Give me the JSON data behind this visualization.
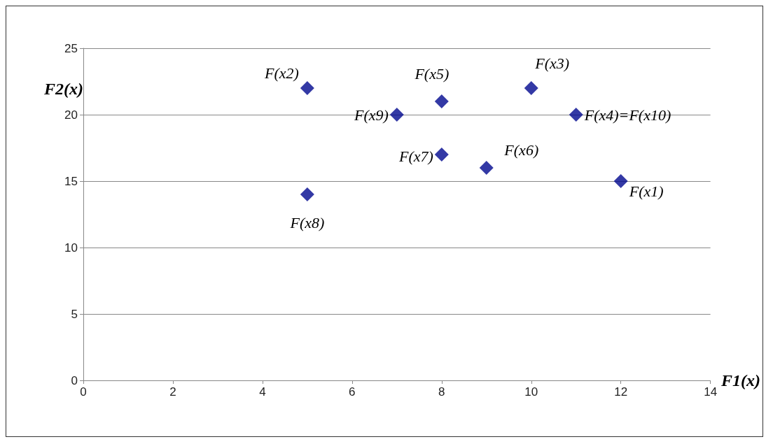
{
  "chart_data": {
    "type": "scatter",
    "xlabel": "F1(x)",
    "ylabel": "F2(x)",
    "x": [
      5,
      8,
      10,
      7,
      11,
      8,
      9,
      12,
      5
    ],
    "values": [
      22,
      21,
      22,
      20,
      20,
      17,
      16,
      15,
      14
    ],
    "color": "#00078f",
    "marker": "diamond",
    "grid": "y",
    "xlim": [
      0,
      14
    ],
    "xticks": [
      0,
      2,
      4,
      6,
      8,
      10,
      12,
      14
    ],
    "ylim": [
      0,
      25
    ],
    "yticks": [
      0,
      5,
      10,
      15,
      20,
      25
    ],
    "annotations": [
      {
        "text": "F(x2)",
        "x": 5,
        "y": 22
      },
      {
        "text": "F(x5)",
        "x": 8,
        "y": 21
      },
      {
        "text": "F(x3)",
        "x": 10,
        "y": 22
      },
      {
        "text": "F(x9)",
        "x": 7,
        "y": 20
      },
      {
        "text": "F(x4)=F(x10)",
        "x": 11,
        "y": 20
      },
      {
        "text": "F(x7)",
        "x": 8,
        "y": 17
      },
      {
        "text": "F(x6)",
        "x": 9,
        "y": 16
      },
      {
        "text": "F(x1)",
        "x": 12,
        "y": 15
      },
      {
        "text": "F(x8)",
        "x": 5,
        "y": 14
      }
    ]
  }
}
